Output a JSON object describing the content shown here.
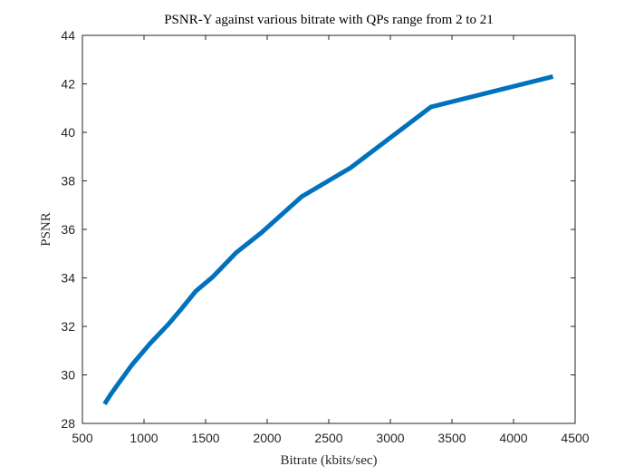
{
  "chart_data": {
    "type": "line",
    "title": "PSNR-Y against various bitrate with QPs range from 2 to 21",
    "xlabel": "Bitrate (kbits/sec)",
    "ylabel": "PSNR",
    "xlim": [
      500,
      4500
    ],
    "ylim": [
      28,
      44
    ],
    "xticks": [
      500,
      1000,
      1500,
      2000,
      2500,
      3000,
      3500,
      4000,
      4500
    ],
    "yticks": [
      28,
      30,
      32,
      34,
      36,
      38,
      40,
      42,
      44
    ],
    "grid": false,
    "series": [
      {
        "color": "#0072BD",
        "x": [
          680,
          730,
          800,
          900,
          1050,
          1200,
          1300,
          1420,
          1560,
          1750,
          1950,
          2280,
          2680,
          3330,
          4320
        ],
        "y": [
          28.8,
          29.2,
          29.7,
          30.4,
          31.3,
          32.1,
          32.7,
          33.45,
          34.05,
          35.05,
          35.85,
          37.35,
          38.55,
          41.05,
          42.3
        ]
      }
    ]
  }
}
